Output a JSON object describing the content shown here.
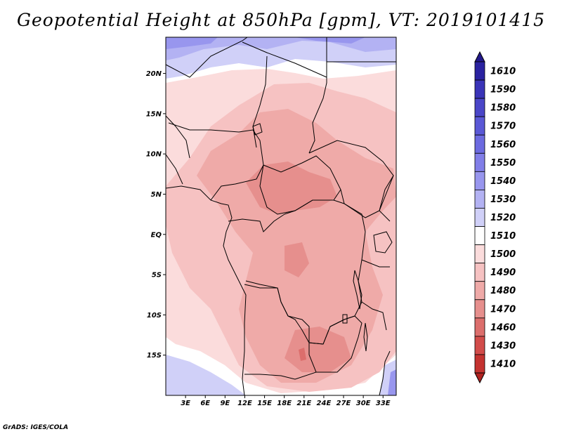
{
  "title": "Geopotential Height at 850hPa [gpm], VT: 2019101415",
  "credit": "GrADS: IGES/COLA",
  "map": {
    "region": "Central Africa",
    "lon_range": [
      0,
      35
    ],
    "lat_range": [
      -20,
      24.5
    ],
    "lat_labels": [
      {
        "lat": 20,
        "text": "20N"
      },
      {
        "lat": 15,
        "text": "15N"
      },
      {
        "lat": 10,
        "text": "10N"
      },
      {
        "lat": 5,
        "text": "5N"
      },
      {
        "lat": 0,
        "text": "EQ"
      },
      {
        "lat": -5,
        "text": "5S"
      },
      {
        "lat": -10,
        "text": "10S"
      },
      {
        "lat": -15,
        "text": "15S"
      }
    ],
    "lon_labels": [
      {
        "lon": 3,
        "text": "3E"
      },
      {
        "lon": 6,
        "text": "6E"
      },
      {
        "lon": 9,
        "text": "9E"
      },
      {
        "lon": 12,
        "text": "12E"
      },
      {
        "lon": 15,
        "text": "15E"
      },
      {
        "lon": 18,
        "text": "18E"
      },
      {
        "lon": 21,
        "text": "21E"
      },
      {
        "lon": 24,
        "text": "24E"
      },
      {
        "lon": 27,
        "text": "27E"
      },
      {
        "lon": 30,
        "text": "30E"
      },
      {
        "lon": 33,
        "text": "33E"
      }
    ]
  },
  "colorbar": {
    "levels": [
      {
        "label": "1610",
        "color": "#2a22a0"
      },
      {
        "label": "1590",
        "color": "#3a34b8"
      },
      {
        "label": "1580",
        "color": "#4a46c8"
      },
      {
        "label": "1570",
        "color": "#5a58d6"
      },
      {
        "label": "1560",
        "color": "#6c6ae0"
      },
      {
        "label": "1550",
        "color": "#817ee8"
      },
      {
        "label": "1540",
        "color": "#9896ee"
      },
      {
        "label": "1530",
        "color": "#b3b2f3"
      },
      {
        "label": "1520",
        "color": "#d0d0f8"
      },
      {
        "label": "1510",
        "color": "#ffffff"
      },
      {
        "label": "1500",
        "color": "#fbdcdc"
      },
      {
        "label": "1490",
        "color": "#f6c2c2"
      },
      {
        "label": "1480",
        "color": "#efaaa8"
      },
      {
        "label": "1470",
        "color": "#e68f8d"
      },
      {
        "label": "1460",
        "color": "#dc6e6c"
      },
      {
        "label": "1430",
        "color": "#d24c4a"
      },
      {
        "label": "1410",
        "color": "#c43330"
      }
    ],
    "top_cap_color": "#22188a",
    "bottom_cap_color": "#b02220"
  }
}
